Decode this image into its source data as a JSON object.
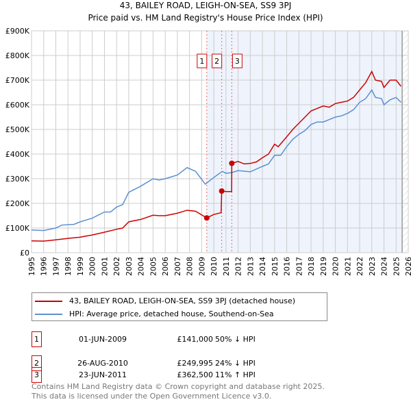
{
  "chart_data": {
    "type": "line",
    "title": "43, BAILEY ROAD, LEIGH-ON-SEA, SS9 3PJ",
    "subtitle": "Price paid vs. HM Land Registry's House Price Index (HPI)",
    "xlim": [
      1995,
      2026
    ],
    "ylim": [
      0,
      900000
    ],
    "x_ticks": [
      "1995",
      "1996",
      "1997",
      "1998",
      "1999",
      "2000",
      "2001",
      "2002",
      "2003",
      "2004",
      "2005",
      "2006",
      "2007",
      "2008",
      "2009",
      "2010",
      "2011",
      "2012",
      "2013",
      "2014",
      "2015",
      "2016",
      "2017",
      "2018",
      "2019",
      "2020",
      "2021",
      "2022",
      "2023",
      "2024",
      "2025",
      "2026"
    ],
    "y_ticks": [
      {
        "v": 0,
        "label": "£0"
      },
      {
        "v": 100000,
        "label": "£100K"
      },
      {
        "v": 200000,
        "label": "£200K"
      },
      {
        "v": 300000,
        "label": "£300K"
      },
      {
        "v": 400000,
        "label": "£400K"
      },
      {
        "v": 500000,
        "label": "£500K"
      },
      {
        "v": 600000,
        "label": "£600K"
      },
      {
        "v": 700000,
        "label": "£700K"
      },
      {
        "v": 800000,
        "label": "£800K"
      },
      {
        "v": 900000,
        "label": "£900K"
      }
    ],
    "grid": true,
    "shaded_from": 2009.42,
    "hatched_from": 2025.5,
    "series": [
      {
        "name": "43, BAILEY ROAD, LEIGH-ON-SEA, SS9 3PJ (detached house)",
        "color": "#cc0000",
        "x": [
          1995,
          1996,
          1997,
          1998,
          1999,
          2000,
          2001,
          2002,
          2002.5,
          2003,
          2004,
          2005,
          2005.5,
          2006,
          2007,
          2007.8,
          2008.5,
          2009.42,
          2010,
          2010.6,
          2010.65,
          2011,
          2011.47,
          2011.48,
          2012,
          2012.5,
          2013,
          2013.5,
          2014,
          2014.5,
          2015,
          2015.3,
          2016,
          2016.5,
          2017,
          2017.5,
          2018,
          2018.5,
          2019,
          2019.5,
          2020,
          2020.5,
          2021,
          2021.5,
          2022,
          2022.5,
          2023,
          2023.3,
          2023.8,
          2024,
          2024.5,
          2025,
          2025.4
        ],
        "y": [
          48000,
          47000,
          52000,
          58000,
          63000,
          72000,
          83000,
          95000,
          100000,
          125000,
          135000,
          152000,
          150000,
          150000,
          160000,
          172000,
          168000,
          141000,
          155000,
          162000,
          250000,
          248000,
          248000,
          362500,
          370000,
          360000,
          362000,
          368000,
          385000,
          400000,
          440000,
          430000,
          470000,
          500000,
          525000,
          550000,
          575000,
          585000,
          595000,
          590000,
          605000,
          610000,
          615000,
          630000,
          660000,
          690000,
          735000,
          700000,
          695000,
          670000,
          700000,
          700000,
          675000
        ]
      },
      {
        "name": "HPI: Average price, detached house, Southend-on-Sea",
        "color": "#5b8fd0",
        "x": [
          1995,
          1996,
          1997,
          1997.5,
          1998.5,
          1999,
          2000,
          2001,
          2001.5,
          2002,
          2002.5,
          2003,
          2004,
          2005,
          2005.5,
          2006,
          2007,
          2007.8,
          2008.5,
          2009.3,
          2010,
          2010.7,
          2011,
          2011.5,
          2012,
          2013,
          2014,
          2014.5,
          2015,
          2015.5,
          2016,
          2016.5,
          2017,
          2017.5,
          2018,
          2018.5,
          2019,
          2019.5,
          2020,
          2020.5,
          2021,
          2021.5,
          2022,
          2022.5,
          2023,
          2023.3,
          2023.8,
          2024,
          2024.5,
          2025,
          2025.4
        ],
        "y": [
          92000,
          90000,
          100000,
          112000,
          115000,
          125000,
          140000,
          165000,
          165000,
          185000,
          195000,
          245000,
          270000,
          300000,
          295000,
          300000,
          315000,
          345000,
          330000,
          278000,
          305000,
          330000,
          322000,
          325000,
          333000,
          328000,
          350000,
          360000,
          395000,
          395000,
          430000,
          460000,
          480000,
          495000,
          520000,
          530000,
          530000,
          540000,
          550000,
          555000,
          565000,
          580000,
          610000,
          625000,
          660000,
          630000,
          625000,
          600000,
          620000,
          630000,
          610000
        ]
      }
    ],
    "sales": [
      {
        "id": "1",
        "x": 2009.42,
        "y": 141000,
        "date": "01-JUN-2009",
        "price": "£141,000",
        "hpi": "50% ↓ HPI"
      },
      {
        "id": "2",
        "x": 2010.65,
        "y": 249995,
        "date": "26-AUG-2010",
        "price": "£249,995",
        "hpi": "24% ↓ HPI"
      },
      {
        "id": "3",
        "x": 2011.48,
        "y": 362500,
        "date": "23-JUN-2011",
        "price": "£362,500",
        "hpi": "11% ↑ HPI"
      }
    ]
  },
  "footer": {
    "line1": "Contains HM Land Registry data © Crown copyright and database right 2025.",
    "line2": "This data is licensed under the Open Government Licence v3.0."
  }
}
